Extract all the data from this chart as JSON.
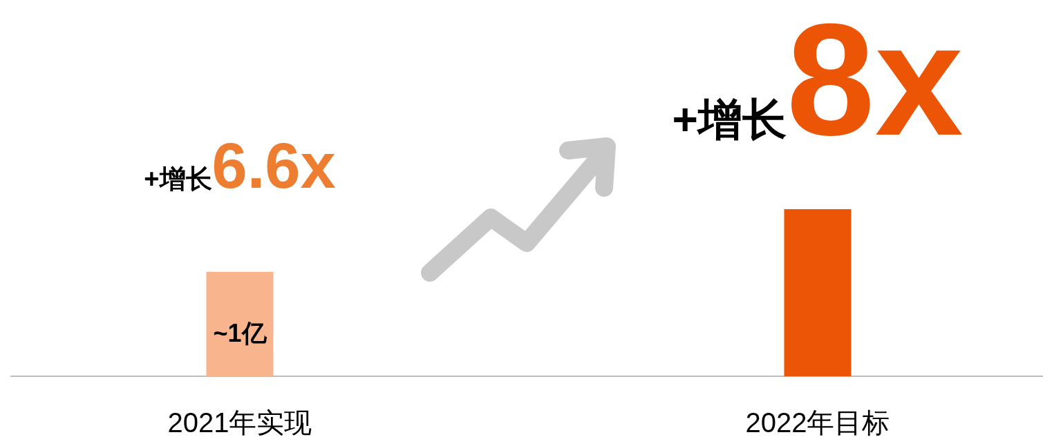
{
  "chart_data": {
    "type": "bar",
    "categories": [
      "2021年实现",
      "2022年目标"
    ],
    "values": [
      1,
      1.6
    ],
    "colors": [
      "#f8b48c",
      "#ed5506"
    ],
    "value_labels": [
      "~1亿",
      null
    ],
    "annotations": [
      "+增长6.6x",
      "+增长8x"
    ]
  }
}
